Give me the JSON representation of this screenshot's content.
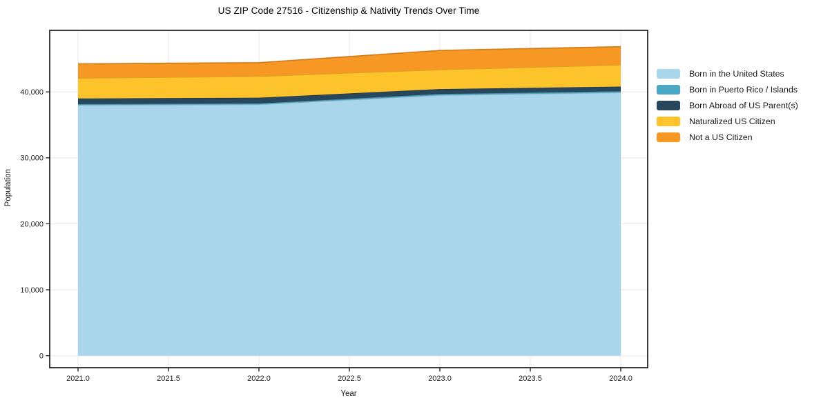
{
  "title": "US ZIP Code 27516 - Citizenship & Nativity Trends Over Time",
  "chart_data": {
    "type": "area",
    "stacked": true,
    "title": "US ZIP Code 27516 - Citizenship & Nativity Trends Over Time",
    "xlabel": "Year",
    "ylabel": "Population",
    "x": [
      2021,
      2022,
      2023,
      2024
    ],
    "x_ticks": [
      2021.0,
      2021.5,
      2022.0,
      2022.5,
      2023.0,
      2023.5,
      2024.0
    ],
    "x_tick_labels": [
      "2021.0",
      "2021.5",
      "2022.0",
      "2022.5",
      "2023.0",
      "2023.5",
      "2024.0"
    ],
    "y_ticks": [
      0,
      10000,
      20000,
      30000,
      40000
    ],
    "y_tick_labels": [
      "0",
      "10,000",
      "20,000",
      "30,000",
      "40,000"
    ],
    "grid": true,
    "legend_position": "right",
    "series": [
      {
        "name": "Born in the United States",
        "color": "#A9D6EA",
        "values": [
          38000,
          38100,
          39500,
          39900
        ]
      },
      {
        "name": "Born in Puerto Rico / Islands",
        "color": "#4BA8C4",
        "values": [
          150,
          150,
          180,
          200
        ]
      },
      {
        "name": "Born Abroad of US Parent(s)",
        "color": "#29475C",
        "values": [
          850,
          870,
          750,
          700
        ]
      },
      {
        "name": "Naturalized US Citizen",
        "color": "#FDC32B",
        "values": [
          3100,
          3250,
          2950,
          3300
        ]
      },
      {
        "name": "Not a US Citizen",
        "color": "#F79724",
        "values": [
          2150,
          2050,
          2900,
          2750
        ]
      }
    ],
    "stacked_totals": [
      44250,
      44420,
      46280,
      46850
    ],
    "colors": {
      "grid": "#e8e8eb",
      "spine": "#0d0d0d",
      "tick_text": "#1a1a1a",
      "background": "#ffffff"
    }
  }
}
